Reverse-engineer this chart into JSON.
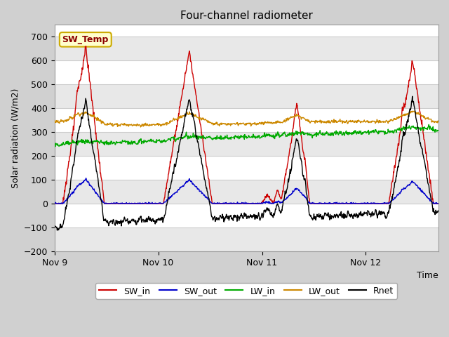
{
  "title": "Four-channel radiometer",
  "xlabel": "Time",
  "ylabel": "Solar radiation (W/m2)",
  "ylim": [
    -200,
    750
  ],
  "yticks": [
    -200,
    -100,
    0,
    100,
    200,
    300,
    400,
    500,
    600,
    700
  ],
  "xtick_labels": [
    "Nov 9",
    "Nov 10",
    "Nov 11",
    "Nov 12"
  ],
  "annotation_text": "SW_Temp",
  "annotation_bg": "#ffffcc",
  "annotation_border": "#ccaa00",
  "annotation_text_color": "#8b0000",
  "plot_bg": "#ffffff",
  "fig_bg": "#d0d0d0",
  "grid_color": "#dddddd",
  "colors": {
    "SW_in": "#cc0000",
    "SW_out": "#0000cc",
    "LW_in": "#00aa00",
    "LW_out": "#cc8800",
    "Rnet": "#000000"
  },
  "n_points": 1000
}
